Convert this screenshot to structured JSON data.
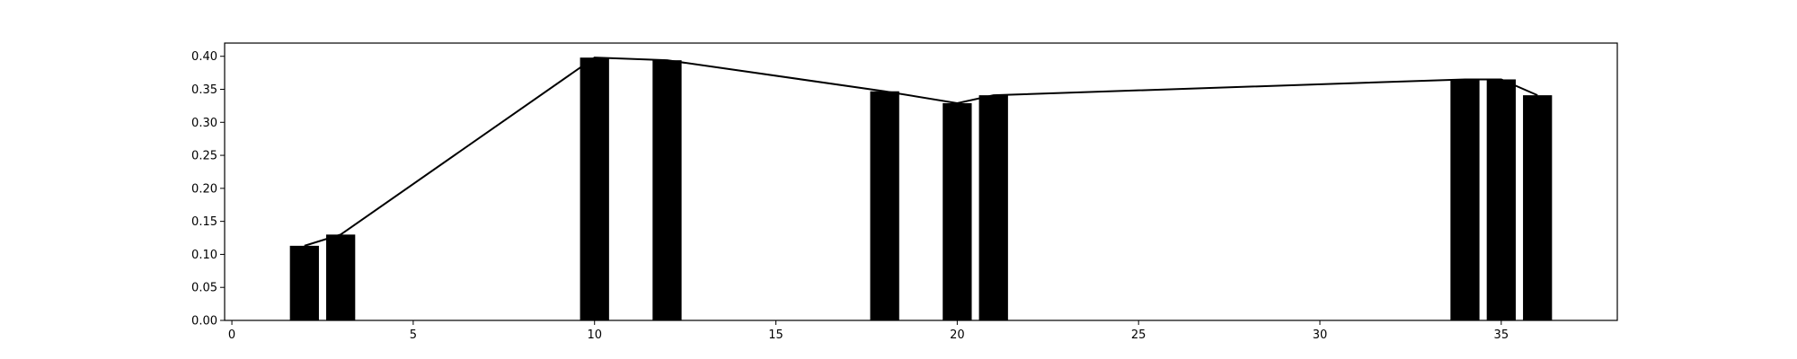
{
  "chart_data": {
    "type": "bar",
    "title": "",
    "xlabel": "",
    "ylabel": "",
    "xlim": [
      -0.2,
      38.2
    ],
    "ylim": [
      0,
      0.42
    ],
    "grid": false,
    "xticks": [
      0,
      5,
      10,
      15,
      20,
      25,
      30,
      35
    ],
    "xtick_labels": [
      "0",
      "5",
      "10",
      "15",
      "20",
      "25",
      "30",
      "35"
    ],
    "yticks": [
      0,
      0.05,
      0.1,
      0.15,
      0.2,
      0.25,
      0.3,
      0.35,
      0.4
    ],
    "ytick_labels": [
      "0.00",
      "0.05",
      "0.10",
      "0.15",
      "0.20",
      "0.25",
      "0.30",
      "0.35",
      "0.40"
    ],
    "bar_width": 0.8,
    "bar_color": "#000000",
    "line_color": "#000000",
    "x": [
      2,
      3,
      10,
      12,
      18,
      20,
      21,
      34,
      35,
      36
    ],
    "values": [
      0.113,
      0.13,
      0.398,
      0.394,
      0.347,
      0.329,
      0.341,
      0.365,
      0.365,
      0.341
    ]
  }
}
